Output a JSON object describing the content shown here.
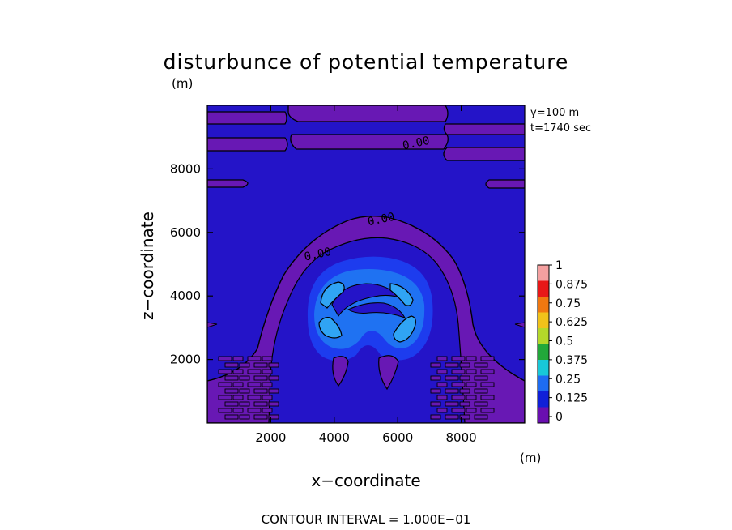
{
  "chart_data": {
    "type": "heatmap",
    "title": "disturbunce of potential temperature",
    "y_unit_label": "(m)",
    "x_unit_label": "(m)",
    "xlabel": "x−coordinate",
    "ylabel": "z−coordinate",
    "xlim": [
      0,
      10000
    ],
    "ylim": [
      0,
      10000
    ],
    "x_ticks": [
      2000,
      4000,
      6000,
      8000
    ],
    "y_ticks": [
      2000,
      4000,
      6000,
      8000
    ],
    "x_tick_labels": [
      "2000",
      "4000",
      "6000",
      "8000"
    ],
    "y_tick_labels": [
      "2000",
      "4000",
      "6000",
      "8000"
    ],
    "info": [
      "y=100 m",
      "t=1740 sec"
    ],
    "footer": "CONTOUR INTERVAL = 1.000E−01",
    "contour_labels": [
      {
        "text": "0.00",
        "x": 6600,
        "z": 8700
      },
      {
        "text": "0.00",
        "x": 5500,
        "z": 6300
      },
      {
        "text": "0.00",
        "x": 3500,
        "z": 5200
      }
    ],
    "colorbar": {
      "levels": [
        "0",
        "0.125",
        "0.25",
        "0.375",
        "0.5",
        "0.625",
        "0.75",
        "0.875",
        "1"
      ],
      "colors": [
        "#6a0fb0",
        "#1020d8",
        "#1e6cf2",
        "#18c8d8",
        "#22a83a",
        "#b4d82a",
        "#f0c21a",
        "#f07810",
        "#e81818",
        "#f4a0a0"
      ]
    },
    "colors": {
      "background_field": "#2414c8",
      "zero_band": "#6818b4",
      "weak_warm": "#1d3cee",
      "mid_warm": "#1f72f2",
      "strong_warm": "#30a4f4",
      "contour": "#000000"
    }
  }
}
